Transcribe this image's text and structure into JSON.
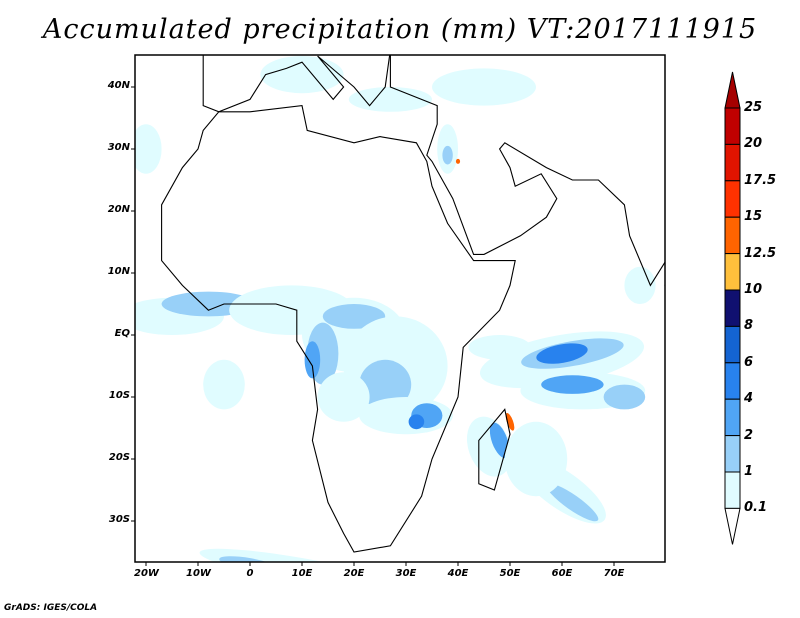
{
  "title": "Accumulated precipitation (mm) VT:2017111915",
  "x_ticks": [
    "20W",
    "10W",
    "0",
    "10E",
    "20E",
    "30E",
    "40E",
    "50E",
    "60E",
    "70E"
  ],
  "y_ticks": [
    "40N",
    "30N",
    "20N",
    "10N",
    "EQ",
    "10S",
    "20S",
    "30S"
  ],
  "colorbar": {
    "levels": [
      "0.1",
      "1",
      "2",
      "4",
      "6",
      "8",
      "10",
      "12.5",
      "15",
      "17.5",
      "20",
      "25"
    ],
    "colors": [
      "#ffffff",
      "#e0fcff",
      "#98d0f8",
      "#50a5f5",
      "#2882ee",
      "#1464d2",
      "#101070",
      "#ffc03c",
      "#ff6400",
      "#ff3200",
      "#e11400",
      "#c00000",
      "#a50000"
    ]
  },
  "credit": "GrADS: IGES/COLA"
}
